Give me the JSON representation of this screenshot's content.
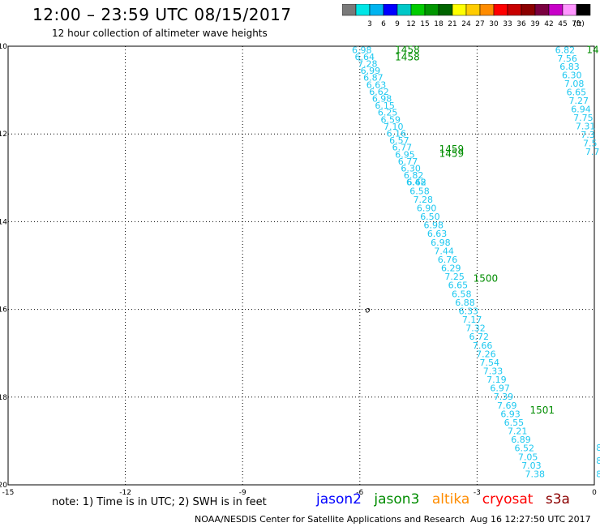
{
  "title": "12:00 – 23:59 UTC 08/15/2017",
  "subtitle": "12 hour collection of altimeter wave heights",
  "color_scale": {
    "unit_label": "(ft)",
    "bins": [
      {
        "label": "",
        "color": "#7a7a7a"
      },
      {
        "label": "3",
        "color": "#00e6e6"
      },
      {
        "label": "6",
        "color": "#00b4f0"
      },
      {
        "label": "9",
        "color": "#0000ff"
      },
      {
        "label": "12",
        "color": "#00c8c8"
      },
      {
        "label": "15",
        "color": "#00cc00"
      },
      {
        "label": "18",
        "color": "#009600"
      },
      {
        "label": "21",
        "color": "#006400"
      },
      {
        "label": "24",
        "color": "#ffff00"
      },
      {
        "label": "27",
        "color": "#ffcc00"
      },
      {
        "label": "30",
        "color": "#ff8c00"
      },
      {
        "label": "33",
        "color": "#ff0000"
      },
      {
        "label": "36",
        "color": "#c80000"
      },
      {
        "label": "39",
        "color": "#8b0000"
      },
      {
        "label": "42",
        "color": "#7a0040"
      },
      {
        "label": "45",
        "color": "#c800c8"
      },
      {
        "label": "70",
        "color": "#ff96ff"
      },
      {
        "label": "",
        "color": "#000000"
      }
    ]
  },
  "note": "note: 1) Time is in UTC; 2) SWH is in feet",
  "satellites": [
    {
      "name": "jason2",
      "color": "#0000ff"
    },
    {
      "name": "jason3",
      "color": "#008c00"
    },
    {
      "name": "altika",
      "color": "#ff8c00"
    },
    {
      "name": "cryosat",
      "color": "#ff0000"
    },
    {
      "name": "s3a",
      "color": "#8b0000"
    }
  ],
  "credit": "NOAA/NESDIS Center for Satellite Applications and Research",
  "timestamp": "Aug 16 12:27:50 UTC 2017",
  "chart_data": {
    "type": "scatter",
    "xlim": [
      -15,
      0
    ],
    "ylim": [
      -20,
      -10
    ],
    "x_ticks": [
      "-15",
      "-12",
      "-9",
      "-6",
      "-3",
      "0"
    ],
    "y_ticks": [
      "-10",
      "-12",
      "-14",
      "-16",
      "-18",
      "-20"
    ],
    "grid": true,
    "value_color": "#1ec8f0",
    "time_color": "#008c00",
    "series": [
      {
        "x_start": -5.95,
        "x_end": -4.55,
        "y_start": -10.08,
        "y_end": -13.1,
        "values": [
          "6.98",
          "6.64",
          "7.28",
          "6.99",
          "6.87",
          "6.63",
          "6.62",
          "6.98",
          "6.15",
          "6.25",
          "6.59",
          "7.10",
          "6.16",
          "6.57",
          "6.77",
          "6.95",
          "6.77",
          "6.30",
          "6.82",
          "6.62"
        ]
      },
      {
        "x_start": -4.56,
        "x_end": -1.52,
        "y_start": -13.1,
        "y_end": -19.75,
        "values": [
          "6.48",
          "6.58",
          "7.28",
          "6.90",
          "6.50",
          "6.98",
          "6.63",
          "6.98",
          "7.44",
          "6.76",
          "6.29",
          "7.25",
          "6.65",
          "6.58",
          "6.88",
          "6.33",
          "7.17",
          "7.32",
          "6.72",
          "7.66",
          "7.26",
          "7.54",
          "7.33",
          "7.19",
          "6.97",
          "7.39",
          "7.69",
          "6.93",
          "6.55",
          "7.21",
          "6.89",
          "6.52",
          "7.05",
          "7.03",
          "7.38"
        ]
      },
      {
        "x_start": -0.75,
        "x_end": -0.05,
        "y_start": -10.08,
        "y_end": -12.4,
        "values": [
          "6.82",
          "7.56",
          "6.83",
          "6.30",
          "7.08",
          "6.65",
          "7.27",
          "6.94",
          "7.75",
          "7.31",
          "7.3",
          "7.5",
          "7.7"
        ]
      }
    ],
    "times": [
      {
        "label": "1458",
        "x": -5.1,
        "y": -10.08
      },
      {
        "label": "1458",
        "x": -5.1,
        "y": -10.25
      },
      {
        "label": "1459",
        "x": -3.97,
        "y": -12.35
      },
      {
        "label": "1459",
        "x": -3.97,
        "y": -12.45
      },
      {
        "label": "1500",
        "x": -3.1,
        "y": -15.3
      },
      {
        "label": "1501",
        "x": -1.65,
        "y": -18.3
      },
      {
        "label": "14",
        "x": -0.2,
        "y": -10.08
      }
    ],
    "right_edge_values": [
      {
        "label": "8",
        "x": 0.12,
        "y": -19.15
      },
      {
        "label": "8",
        "x": 0.12,
        "y": -19.45
      },
      {
        "label": "8",
        "x": 0.12,
        "y": -19.75
      }
    ],
    "marker": {
      "label": "o",
      "x": -5.8,
      "y": -16.0
    }
  }
}
